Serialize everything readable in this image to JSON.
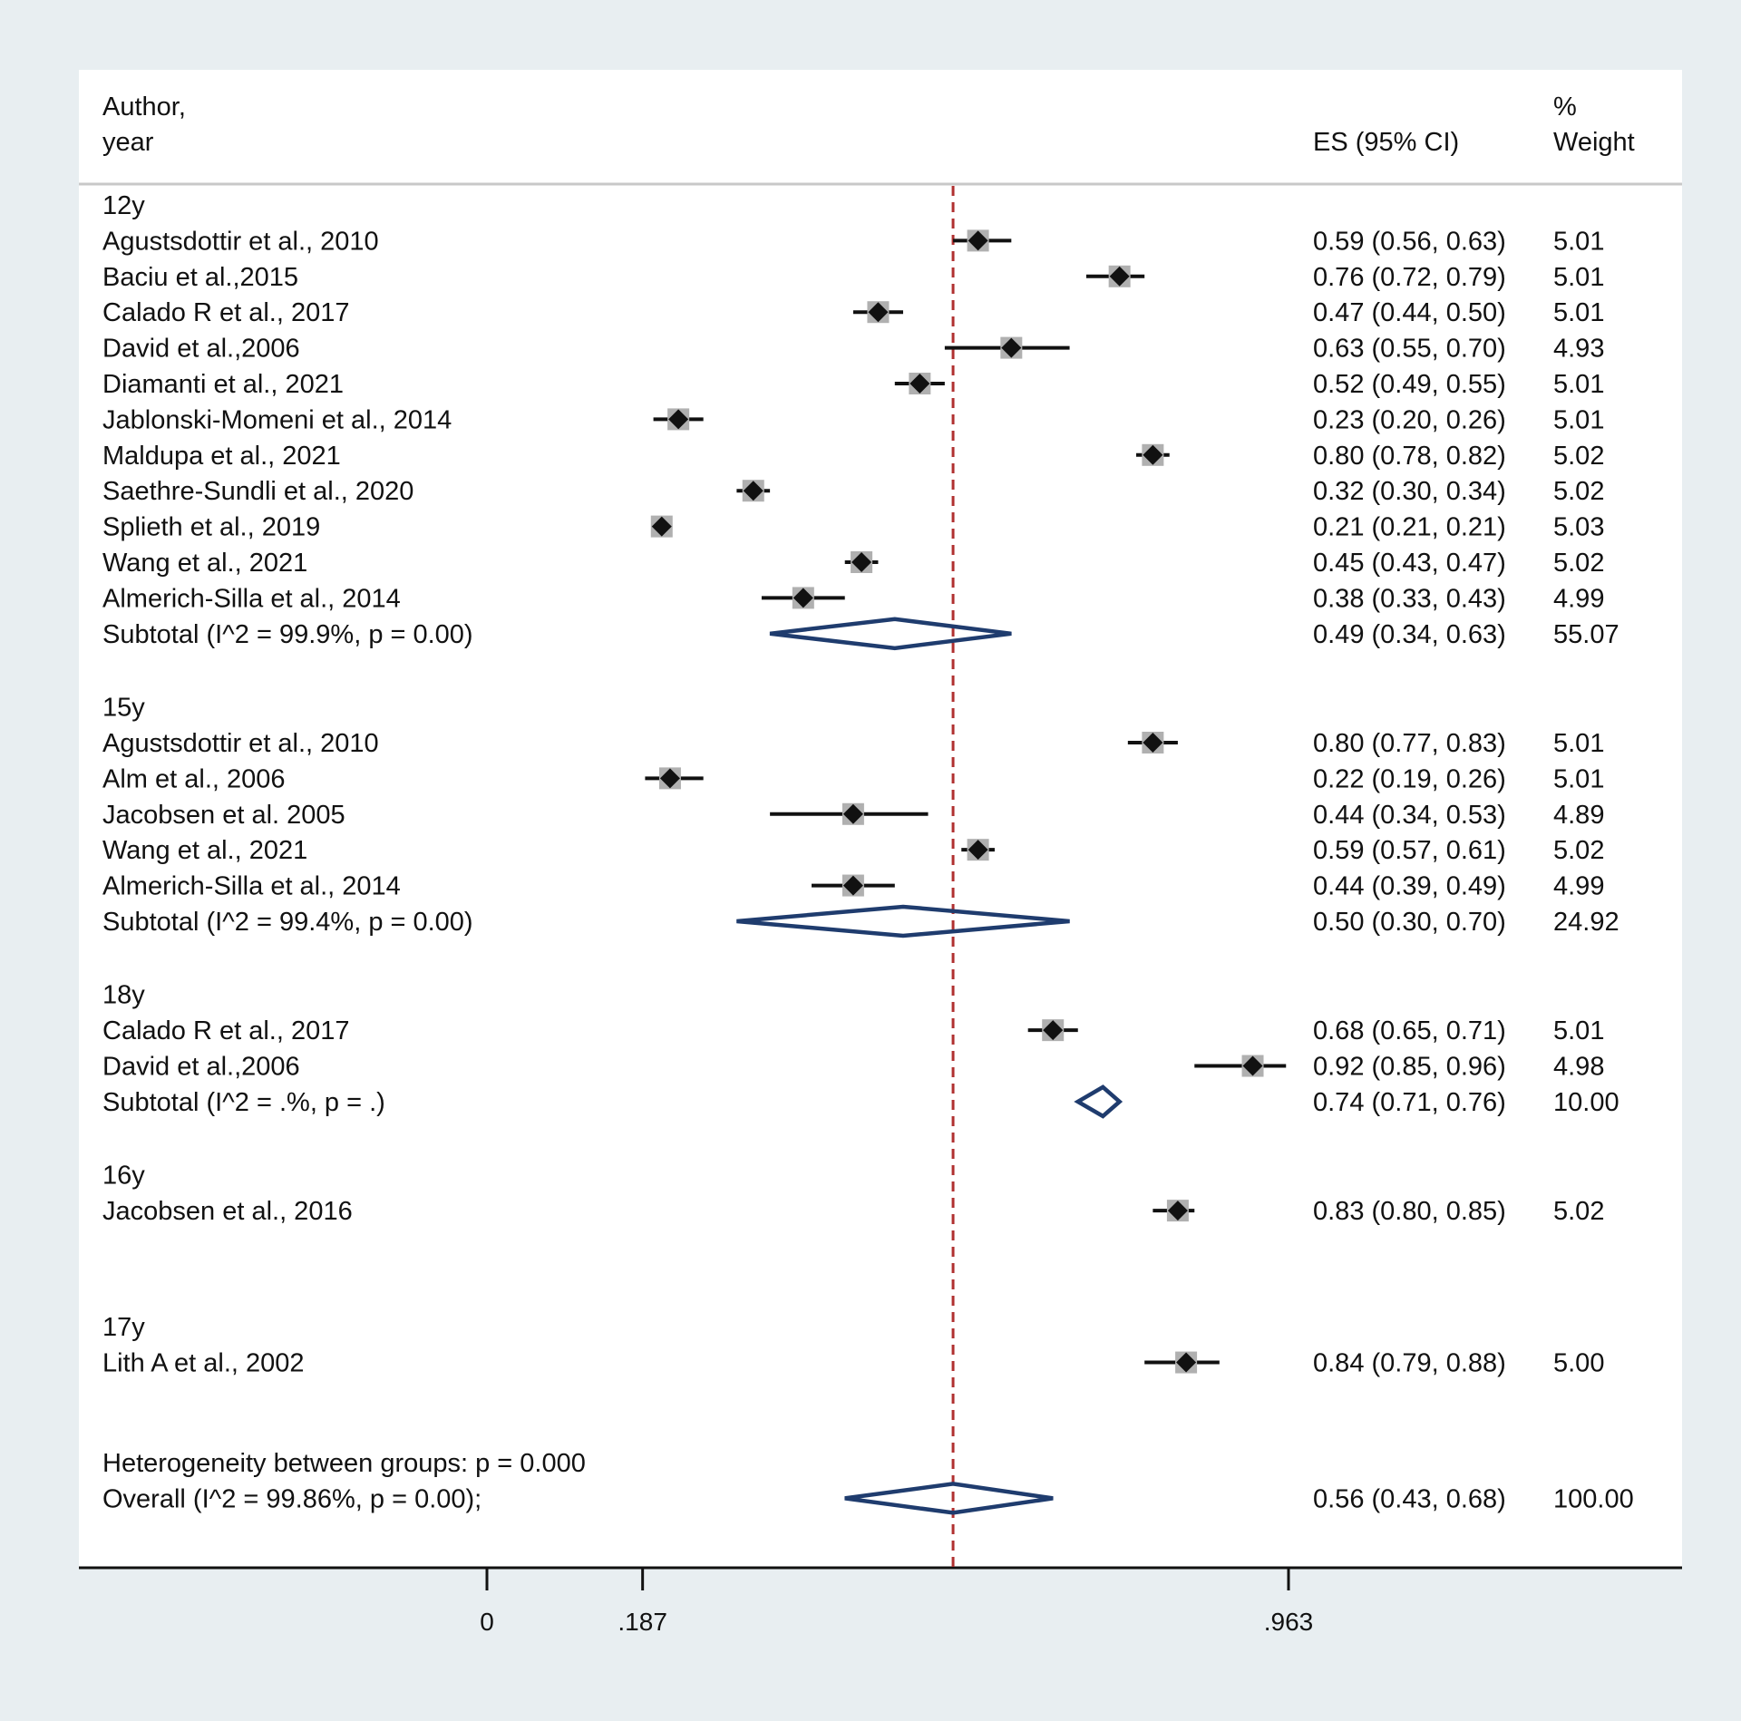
{
  "colors": {
    "background": "#e8eef1",
    "panel": "#ffffff",
    "marker": "#111111",
    "weight_box": "#b0b0b0",
    "diamond": "#1f3c6e",
    "reference_line": "#b03030"
  },
  "chart_data": {
    "type": "forest",
    "headers": {
      "study_line1": "Author,",
      "study_line2": "year",
      "es": "ES (95% CI)",
      "weight_line1": "%",
      "weight_line2": "Weight"
    },
    "x_ticks": [
      {
        "value": 0,
        "label": "0"
      },
      {
        "value": 0.187,
        "label": ".187"
      },
      {
        "value": 0.963,
        "label": ".963"
      }
    ],
    "reference_line": 0.56,
    "groups": [
      {
        "label": "12y",
        "studies": [
          {
            "name": "Agustsdottir et al., 2010",
            "es": 0.59,
            "lo": 0.56,
            "hi": 0.63,
            "es_text": "0.59 (0.56, 0.63)",
            "weight": "5.01"
          },
          {
            "name": "Baciu et al.,2015",
            "es": 0.76,
            "lo": 0.72,
            "hi": 0.79,
            "es_text": "0.76 (0.72, 0.79)",
            "weight": "5.01"
          },
          {
            "name": "Calado R et al., 2017",
            "es": 0.47,
            "lo": 0.44,
            "hi": 0.5,
            "es_text": "0.47 (0.44, 0.50)",
            "weight": "5.01"
          },
          {
            "name": "David  et al.,2006",
            "es": 0.63,
            "lo": 0.55,
            "hi": 0.7,
            "es_text": "0.63 (0.55, 0.70)",
            "weight": "4.93"
          },
          {
            "name": "Diamanti et al., 2021",
            "es": 0.52,
            "lo": 0.49,
            "hi": 0.55,
            "es_text": "0.52 (0.49, 0.55)",
            "weight": "5.01"
          },
          {
            "name": "Jablonski-Momeni et al., 2014",
            "es": 0.23,
            "lo": 0.2,
            "hi": 0.26,
            "es_text": "0.23 (0.20, 0.26)",
            "weight": "5.01"
          },
          {
            "name": "Maldupa et al., 2021",
            "es": 0.8,
            "lo": 0.78,
            "hi": 0.82,
            "es_text": "0.80 (0.78, 0.82)",
            "weight": "5.02"
          },
          {
            "name": "Saethre-Sundli  et al., 2020",
            "es": 0.32,
            "lo": 0.3,
            "hi": 0.34,
            "es_text": "0.32 (0.30, 0.34)",
            "weight": "5.02"
          },
          {
            "name": "Splieth et al., 2019",
            "es": 0.21,
            "lo": 0.21,
            "hi": 0.21,
            "es_text": "0.21 (0.21, 0.21)",
            "weight": "5.03"
          },
          {
            "name": "Wang et al., 2021",
            "es": 0.45,
            "lo": 0.43,
            "hi": 0.47,
            "es_text": "0.45 (0.43, 0.47)",
            "weight": "5.02"
          },
          {
            "name": "Almerich-Silla et al., 2014",
            "es": 0.38,
            "lo": 0.33,
            "hi": 0.43,
            "es_text": "0.38 (0.33, 0.43)",
            "weight": "4.99"
          }
        ],
        "subtotal": {
          "label": "Subtotal  (I^2 = 99.9%, p = 0.00)",
          "es": 0.49,
          "lo": 0.34,
          "hi": 0.63,
          "es_text": "0.49 (0.34, 0.63)",
          "weight": "55.07"
        }
      },
      {
        "label": "15y",
        "studies": [
          {
            "name": "Agustsdottir et al., 2010",
            "es": 0.8,
            "lo": 0.77,
            "hi": 0.83,
            "es_text": "0.80 (0.77, 0.83)",
            "weight": "5.01"
          },
          {
            "name": "Alm et al., 2006",
            "es": 0.22,
            "lo": 0.19,
            "hi": 0.26,
            "es_text": "0.22 (0.19, 0.26)",
            "weight": "5.01"
          },
          {
            "name": "Jacobsen et al. 2005",
            "es": 0.44,
            "lo": 0.34,
            "hi": 0.53,
            "es_text": "0.44 (0.34, 0.53)",
            "weight": "4.89"
          },
          {
            "name": "Wang et al., 2021",
            "es": 0.59,
            "lo": 0.57,
            "hi": 0.61,
            "es_text": "0.59 (0.57, 0.61)",
            "weight": "5.02"
          },
          {
            "name": "Almerich-Silla et al., 2014",
            "es": 0.44,
            "lo": 0.39,
            "hi": 0.49,
            "es_text": "0.44 (0.39, 0.49)",
            "weight": "4.99"
          }
        ],
        "subtotal": {
          "label": "Subtotal  (I^2 = 99.4%, p = 0.00)",
          "es": 0.5,
          "lo": 0.3,
          "hi": 0.7,
          "es_text": "0.50 (0.30, 0.70)",
          "weight": "24.92"
        }
      },
      {
        "label": "18y",
        "studies": [
          {
            "name": "Calado R et al., 2017",
            "es": 0.68,
            "lo": 0.65,
            "hi": 0.71,
            "es_text": "0.68 (0.65, 0.71)",
            "weight": "5.01"
          },
          {
            "name": "David  et al.,2006",
            "es": 0.92,
            "lo": 0.85,
            "hi": 0.96,
            "es_text": "0.92 (0.85, 0.96)",
            "weight": "4.98"
          }
        ],
        "subtotal": {
          "label": "Subtotal  (I^2 = .%, p = .)",
          "es": 0.74,
          "lo": 0.71,
          "hi": 0.76,
          "es_text": "0.74 (0.71, 0.76)",
          "weight": "10.00"
        }
      },
      {
        "label": "16y",
        "studies": [
          {
            "name": "Jacobsen et al., 2016",
            "es": 0.83,
            "lo": 0.8,
            "hi": 0.85,
            "es_text": "0.83 (0.80, 0.85)",
            "weight": "5.02"
          }
        ],
        "subtotal": null
      },
      {
        "label": "17y",
        "studies": [
          {
            "name": "Lith A et al., 2002",
            "es": 0.84,
            "lo": 0.79,
            "hi": 0.88,
            "es_text": "0.84 (0.79, 0.88)",
            "weight": "5.00"
          }
        ],
        "subtotal": null
      }
    ],
    "heterogeneity_text": "Heterogeneity between groups: p = 0.000",
    "overall": {
      "label": "Overall  (I^2 = 99.86%, p = 0.00);",
      "es": 0.56,
      "lo": 0.43,
      "hi": 0.68,
      "es_text": "0.56 (0.43, 0.68)",
      "weight": "100.00"
    }
  }
}
